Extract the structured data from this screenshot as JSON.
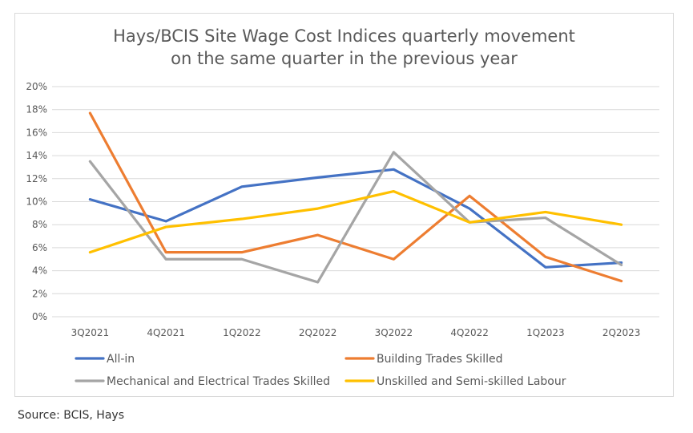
{
  "chart_data": {
    "type": "line",
    "title": [
      "Hays/BCIS Site Wage Cost Indices quarterly movement",
      "on the same quarter in the previous year"
    ],
    "categories": [
      "3Q2021",
      "4Q2021",
      "1Q2022",
      "2Q2022",
      "3Q2022",
      "4Q2022",
      "1Q2023",
      "2Q2023"
    ],
    "ylim": [
      0,
      20
    ],
    "ytick_step": 2,
    "y_tick_labels": [
      "0%",
      "2%",
      "4%",
      "6%",
      "8%",
      "10%",
      "12%",
      "14%",
      "16%",
      "18%",
      "20%"
    ],
    "grid": true,
    "legend_position": "bottom",
    "series": [
      {
        "name": "All-in",
        "color": "#4472c4",
        "values": [
          10.2,
          8.3,
          11.3,
          12.1,
          12.8,
          9.4,
          4.3,
          4.7
        ]
      },
      {
        "name": "Building Trades Skilled",
        "color": "#ed7d31",
        "values": [
          17.7,
          5.6,
          5.6,
          7.1,
          5.0,
          10.5,
          5.2,
          3.1
        ]
      },
      {
        "name": "Mechanical and Electrical Trades Skilled",
        "color": "#a5a5a5",
        "values": [
          13.5,
          5.0,
          5.0,
          3.0,
          14.3,
          8.2,
          8.6,
          4.5
        ]
      },
      {
        "name": "Unskilled and Semi-skilled Labour",
        "color": "#ffc000",
        "values": [
          5.6,
          7.8,
          8.5,
          9.4,
          10.9,
          8.2,
          9.1,
          8.0
        ]
      }
    ]
  },
  "source": "Source: BCIS, Hays"
}
